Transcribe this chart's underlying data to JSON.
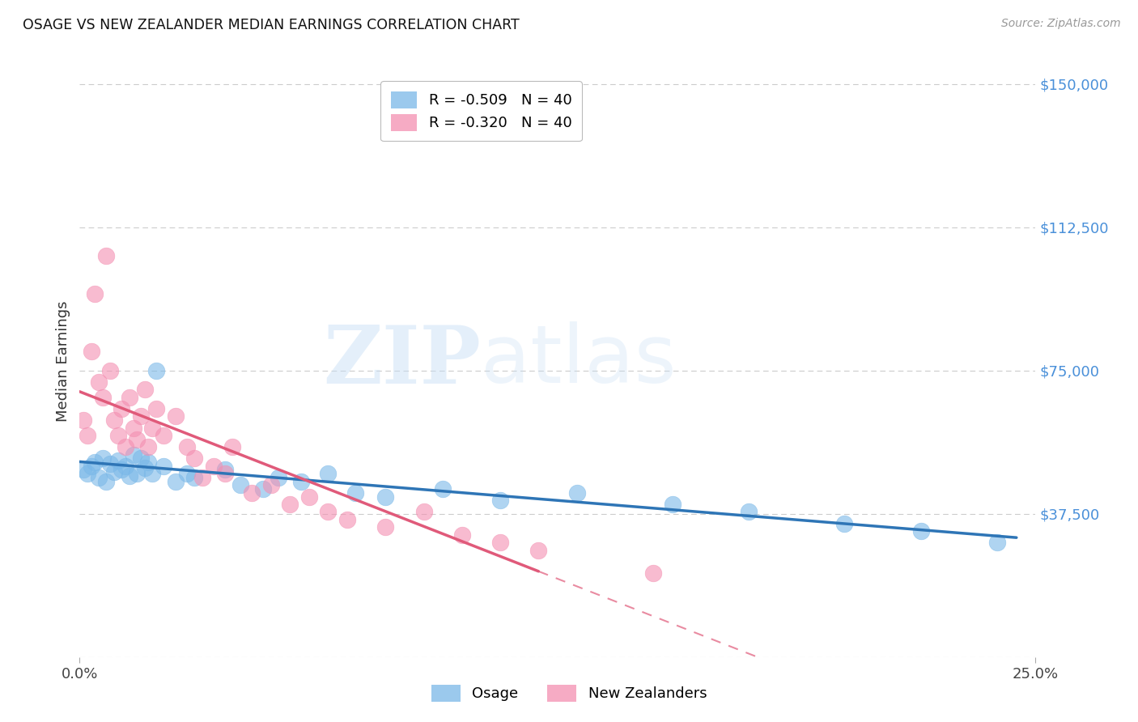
{
  "title": "OSAGE VS NEW ZEALANDER MEDIAN EARNINGS CORRELATION CHART",
  "source": "Source: ZipAtlas.com",
  "ylabel": "Median Earnings",
  "yticks": [
    0,
    37500,
    75000,
    112500,
    150000
  ],
  "ytick_labels": [
    "",
    "$37,500",
    "$75,000",
    "$112,500",
    "$150,000"
  ],
  "xlim": [
    0.0,
    0.25
  ],
  "ylim": [
    0,
    155000
  ],
  "osage_R": -0.509,
  "osage_N": 40,
  "nz_R": -0.32,
  "nz_N": 40,
  "osage_color": "#7ab8e8",
  "nz_color": "#f48fb1",
  "osage_color_line": "#2e75b6",
  "nz_color_line": "#e05a7a",
  "legend_label_osage": "Osage",
  "legend_label_nz": "New Zealanders",
  "watermark_zip": "ZIP",
  "watermark_atlas": "atlas",
  "background_color": "#ffffff",
  "ytick_color": "#4a90d9",
  "grid_color": "#cccccc",
  "osage_x": [
    0.001,
    0.002,
    0.003,
    0.004,
    0.005,
    0.006,
    0.007,
    0.008,
    0.009,
    0.01,
    0.011,
    0.012,
    0.013,
    0.014,
    0.015,
    0.016,
    0.017,
    0.018,
    0.019,
    0.02,
    0.022,
    0.025,
    0.028,
    0.03,
    0.038,
    0.042,
    0.048,
    0.052,
    0.058,
    0.065,
    0.072,
    0.08,
    0.095,
    0.11,
    0.13,
    0.155,
    0.175,
    0.2,
    0.22,
    0.24
  ],
  "osage_y": [
    49000,
    48000,
    50000,
    51000,
    47000,
    52000,
    46000,
    50500,
    48500,
    51500,
    49000,
    50000,
    47500,
    53000,
    48000,
    52000,
    49500,
    51000,
    48000,
    75000,
    50000,
    46000,
    48000,
    47000,
    49000,
    45000,
    44000,
    47000,
    46000,
    48000,
    43000,
    42000,
    44000,
    41000,
    43000,
    40000,
    38000,
    35000,
    33000,
    30000
  ],
  "nz_x": [
    0.001,
    0.002,
    0.003,
    0.004,
    0.005,
    0.006,
    0.007,
    0.008,
    0.009,
    0.01,
    0.011,
    0.012,
    0.013,
    0.014,
    0.015,
    0.016,
    0.017,
    0.018,
    0.019,
    0.02,
    0.022,
    0.025,
    0.028,
    0.03,
    0.032,
    0.035,
    0.038,
    0.04,
    0.045,
    0.05,
    0.055,
    0.06,
    0.065,
    0.07,
    0.08,
    0.09,
    0.1,
    0.11,
    0.12,
    0.15
  ],
  "nz_y": [
    62000,
    58000,
    80000,
    95000,
    72000,
    68000,
    105000,
    75000,
    62000,
    58000,
    65000,
    55000,
    68000,
    60000,
    57000,
    63000,
    70000,
    55000,
    60000,
    65000,
    58000,
    63000,
    55000,
    52000,
    47000,
    50000,
    48000,
    55000,
    43000,
    45000,
    40000,
    42000,
    38000,
    36000,
    34000,
    38000,
    32000,
    30000,
    28000,
    22000
  ]
}
